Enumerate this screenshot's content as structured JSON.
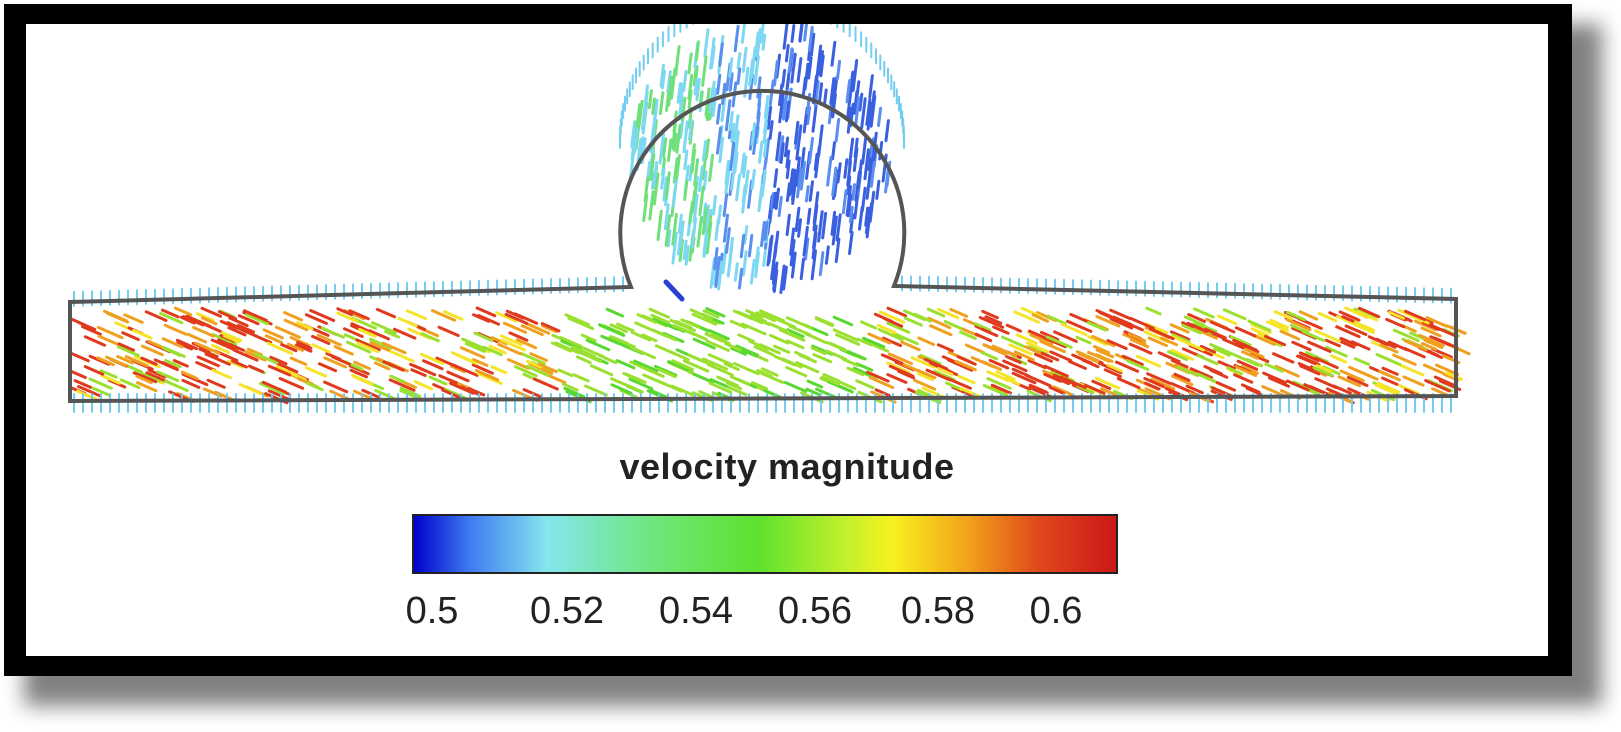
{
  "colorbar": {
    "title": "velocity magnitude",
    "ticks": [
      "0.5",
      "0.52",
      "0.54",
      "0.56",
      "0.58",
      "0.6"
    ],
    "colors": [
      "#0000cc",
      "#3f7cf0",
      "#86e6ee",
      "#6ee77c",
      "#5ee22e",
      "#c6f02c",
      "#f6f21f",
      "#f2a21a",
      "#e0481c",
      "#cc1818"
    ]
  },
  "geometry": {
    "shape": "channel-with-circular-cavity",
    "outline_color": "#555555"
  },
  "field": {
    "channel_colors": [
      "#e03a1e",
      "#f0a020",
      "#9be030",
      "#58d830",
      "#f5e42a"
    ],
    "cavity_colors": [
      "#3a60e0",
      "#5a8ff0",
      "#7fd8f2",
      "#6fe07a",
      "#2a40d0"
    ],
    "edge_color": "#72cdf0"
  }
}
